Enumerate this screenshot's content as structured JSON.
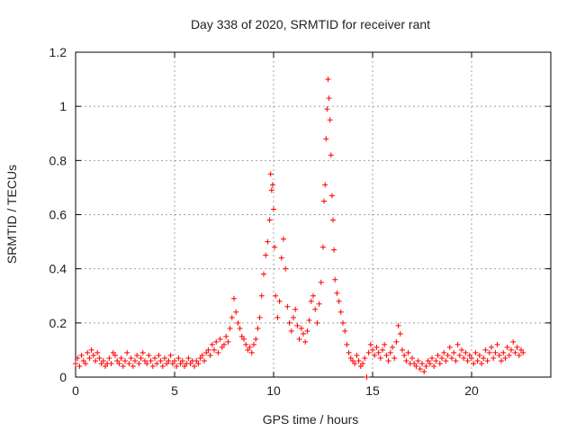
{
  "chart_data": {
    "type": "scatter",
    "title": "Day 338 of 2020, SRMTID for receiver rant",
    "xlabel": "GPS time / hours",
    "ylabel": "SRMTID / TECUs",
    "xlim": [
      0,
      24
    ],
    "ylim": [
      0,
      1.2
    ],
    "x_ticks": [
      0,
      5,
      10,
      15,
      20
    ],
    "x_tick_labels": [
      "0",
      "5",
      "10",
      "15",
      "20"
    ],
    "y_ticks": [
      0,
      0.2,
      0.4,
      0.6,
      0.8,
      1.0,
      1.2
    ],
    "y_tick_labels": [
      "0",
      "0.2",
      "0.4",
      "0.6",
      "0.8",
      "1",
      "1.2"
    ],
    "grid": true,
    "marker": "plus",
    "color": "#ff0000",
    "series": [
      {
        "name": "SRMTID",
        "points": [
          [
            0.0,
            0.05
          ],
          [
            0.1,
            0.07
          ],
          [
            0.2,
            0.04
          ],
          [
            0.3,
            0.08
          ],
          [
            0.4,
            0.06
          ],
          [
            0.5,
            0.05
          ],
          [
            0.6,
            0.09
          ],
          [
            0.7,
            0.07
          ],
          [
            0.8,
            0.1
          ],
          [
            0.9,
            0.08
          ],
          [
            1.0,
            0.06
          ],
          [
            1.1,
            0.09
          ],
          [
            1.2,
            0.07
          ],
          [
            1.3,
            0.05
          ],
          [
            1.4,
            0.06
          ],
          [
            1.5,
            0.04
          ],
          [
            1.6,
            0.05
          ],
          [
            1.7,
            0.07
          ],
          [
            1.8,
            0.05
          ],
          [
            1.9,
            0.09
          ],
          [
            2.0,
            0.08
          ],
          [
            2.1,
            0.06
          ],
          [
            2.2,
            0.05
          ],
          [
            2.3,
            0.07
          ],
          [
            2.4,
            0.04
          ],
          [
            2.5,
            0.06
          ],
          [
            2.6,
            0.09
          ],
          [
            2.7,
            0.05
          ],
          [
            2.8,
            0.07
          ],
          [
            2.9,
            0.04
          ],
          [
            3.0,
            0.06
          ],
          [
            3.1,
            0.08
          ],
          [
            3.2,
            0.05
          ],
          [
            3.3,
            0.07
          ],
          [
            3.4,
            0.09
          ],
          [
            3.5,
            0.06
          ],
          [
            3.6,
            0.05
          ],
          [
            3.7,
            0.08
          ],
          [
            3.8,
            0.06
          ],
          [
            3.9,
            0.04
          ],
          [
            4.0,
            0.07
          ],
          [
            4.1,
            0.05
          ],
          [
            4.2,
            0.08
          ],
          [
            4.3,
            0.06
          ],
          [
            4.4,
            0.04
          ],
          [
            4.5,
            0.07
          ],
          [
            4.6,
            0.05
          ],
          [
            4.7,
            0.06
          ],
          [
            4.8,
            0.08
          ],
          [
            4.9,
            0.05
          ],
          [
            5.0,
            0.06
          ],
          [
            5.1,
            0.04
          ],
          [
            5.2,
            0.07
          ],
          [
            5.3,
            0.05
          ],
          [
            5.4,
            0.06
          ],
          [
            5.5,
            0.04
          ],
          [
            5.6,
            0.05
          ],
          [
            5.7,
            0.07
          ],
          [
            5.8,
            0.05
          ],
          [
            5.9,
            0.06
          ],
          [
            6.0,
            0.04
          ],
          [
            6.1,
            0.06
          ],
          [
            6.2,
            0.05
          ],
          [
            6.3,
            0.07
          ],
          [
            6.4,
            0.08
          ],
          [
            6.5,
            0.06
          ],
          [
            6.6,
            0.09
          ],
          [
            6.7,
            0.1
          ],
          [
            6.8,
            0.08
          ],
          [
            6.9,
            0.12
          ],
          [
            7.0,
            0.1
          ],
          [
            7.1,
            0.13
          ],
          [
            7.2,
            0.09
          ],
          [
            7.3,
            0.14
          ],
          [
            7.4,
            0.11
          ],
          [
            7.5,
            0.12
          ],
          [
            7.6,
            0.15
          ],
          [
            7.7,
            0.13
          ],
          [
            7.8,
            0.18
          ],
          [
            7.9,
            0.22
          ],
          [
            8.0,
            0.29
          ],
          [
            8.1,
            0.24
          ],
          [
            8.2,
            0.2
          ],
          [
            8.3,
            0.18
          ],
          [
            8.4,
            0.15
          ],
          [
            8.5,
            0.14
          ],
          [
            8.6,
            0.12
          ],
          [
            8.7,
            0.1
          ],
          [
            8.8,
            0.11
          ],
          [
            8.9,
            0.09
          ],
          [
            9.0,
            0.12
          ],
          [
            9.1,
            0.14
          ],
          [
            9.2,
            0.18
          ],
          [
            9.3,
            0.22
          ],
          [
            9.4,
            0.3
          ],
          [
            9.5,
            0.38
          ],
          [
            9.6,
            0.45
          ],
          [
            9.7,
            0.5
          ],
          [
            9.8,
            0.58
          ],
          [
            9.85,
            0.75
          ],
          [
            9.9,
            0.69
          ],
          [
            9.95,
            0.71
          ],
          [
            10.0,
            0.62
          ],
          [
            10.05,
            0.48
          ],
          [
            10.1,
            0.3
          ],
          [
            10.2,
            0.22
          ],
          [
            10.3,
            0.28
          ],
          [
            10.4,
            0.44
          ],
          [
            10.5,
            0.51
          ],
          [
            10.6,
            0.4
          ],
          [
            10.7,
            0.26
          ],
          [
            10.8,
            0.2
          ],
          [
            10.9,
            0.17
          ],
          [
            11.0,
            0.22
          ],
          [
            11.1,
            0.25
          ],
          [
            11.2,
            0.19
          ],
          [
            11.3,
            0.14
          ],
          [
            11.4,
            0.18
          ],
          [
            11.5,
            0.16
          ],
          [
            11.6,
            0.13
          ],
          [
            11.7,
            0.17
          ],
          [
            11.8,
            0.21
          ],
          [
            11.9,
            0.28
          ],
          [
            12.0,
            0.3
          ],
          [
            12.1,
            0.25
          ],
          [
            12.2,
            0.2
          ],
          [
            12.3,
            0.27
          ],
          [
            12.4,
            0.35
          ],
          [
            12.5,
            0.48
          ],
          [
            12.55,
            0.65
          ],
          [
            12.6,
            0.71
          ],
          [
            12.65,
            0.88
          ],
          [
            12.7,
            0.99
          ],
          [
            12.75,
            1.1
          ],
          [
            12.8,
            1.03
          ],
          [
            12.85,
            0.95
          ],
          [
            12.9,
            0.82
          ],
          [
            12.95,
            0.67
          ],
          [
            13.0,
            0.58
          ],
          [
            13.05,
            0.47
          ],
          [
            13.1,
            0.36
          ],
          [
            13.2,
            0.31
          ],
          [
            13.3,
            0.28
          ],
          [
            13.4,
            0.24
          ],
          [
            13.5,
            0.2
          ],
          [
            13.6,
            0.17
          ],
          [
            13.7,
            0.12
          ],
          [
            13.8,
            0.09
          ],
          [
            13.9,
            0.07
          ],
          [
            14.0,
            0.06
          ],
          [
            14.1,
            0.05
          ],
          [
            14.2,
            0.08
          ],
          [
            14.3,
            0.06
          ],
          [
            14.4,
            0.04
          ],
          [
            14.5,
            0.05
          ],
          [
            14.6,
            0.07
          ],
          [
            14.7,
            0.0
          ],
          [
            14.8,
            0.09
          ],
          [
            14.9,
            0.12
          ],
          [
            15.0,
            0.1
          ],
          [
            15.1,
            0.08
          ],
          [
            15.2,
            0.11
          ],
          [
            15.3,
            0.09
          ],
          [
            15.4,
            0.07
          ],
          [
            15.5,
            0.1
          ],
          [
            15.6,
            0.12
          ],
          [
            15.7,
            0.08
          ],
          [
            15.8,
            0.06
          ],
          [
            15.9,
            0.09
          ],
          [
            16.0,
            0.11
          ],
          [
            16.1,
            0.07
          ],
          [
            16.2,
            0.13
          ],
          [
            16.3,
            0.19
          ],
          [
            16.4,
            0.16
          ],
          [
            16.5,
            0.1
          ],
          [
            16.6,
            0.08
          ],
          [
            16.7,
            0.06
          ],
          [
            16.8,
            0.09
          ],
          [
            16.9,
            0.05
          ],
          [
            17.0,
            0.07
          ],
          [
            17.1,
            0.05
          ],
          [
            17.2,
            0.04
          ],
          [
            17.3,
            0.06
          ],
          [
            17.4,
            0.03
          ],
          [
            17.5,
            0.05
          ],
          [
            17.6,
            0.02
          ],
          [
            17.7,
            0.04
          ],
          [
            17.8,
            0.06
          ],
          [
            17.9,
            0.05
          ],
          [
            18.0,
            0.07
          ],
          [
            18.1,
            0.04
          ],
          [
            18.2,
            0.06
          ],
          [
            18.3,
            0.08
          ],
          [
            18.4,
            0.05
          ],
          [
            18.5,
            0.07
          ],
          [
            18.6,
            0.09
          ],
          [
            18.7,
            0.06
          ],
          [
            18.8,
            0.08
          ],
          [
            18.9,
            0.11
          ],
          [
            19.0,
            0.07
          ],
          [
            19.1,
            0.09
          ],
          [
            19.2,
            0.06
          ],
          [
            19.3,
            0.12
          ],
          [
            19.4,
            0.08
          ],
          [
            19.5,
            0.1
          ],
          [
            19.6,
            0.07
          ],
          [
            19.7,
            0.09
          ],
          [
            19.8,
            0.06
          ],
          [
            19.9,
            0.08
          ],
          [
            20.0,
            0.07
          ],
          [
            20.1,
            0.05
          ],
          [
            20.2,
            0.09
          ],
          [
            20.3,
            0.06
          ],
          [
            20.4,
            0.08
          ],
          [
            20.5,
            0.05
          ],
          [
            20.6,
            0.07
          ],
          [
            20.7,
            0.1
          ],
          [
            20.8,
            0.06
          ],
          [
            20.9,
            0.09
          ],
          [
            21.0,
            0.11
          ],
          [
            21.1,
            0.07
          ],
          [
            21.2,
            0.09
          ],
          [
            21.3,
            0.12
          ],
          [
            21.4,
            0.08
          ],
          [
            21.5,
            0.06
          ],
          [
            21.6,
            0.09
          ],
          [
            21.7,
            0.07
          ],
          [
            21.8,
            0.11
          ],
          [
            21.9,
            0.08
          ],
          [
            22.0,
            0.1
          ],
          [
            22.1,
            0.13
          ],
          [
            22.2,
            0.09
          ],
          [
            22.3,
            0.11
          ],
          [
            22.4,
            0.08
          ],
          [
            22.5,
            0.1
          ],
          [
            22.6,
            0.09
          ]
        ]
      }
    ]
  }
}
